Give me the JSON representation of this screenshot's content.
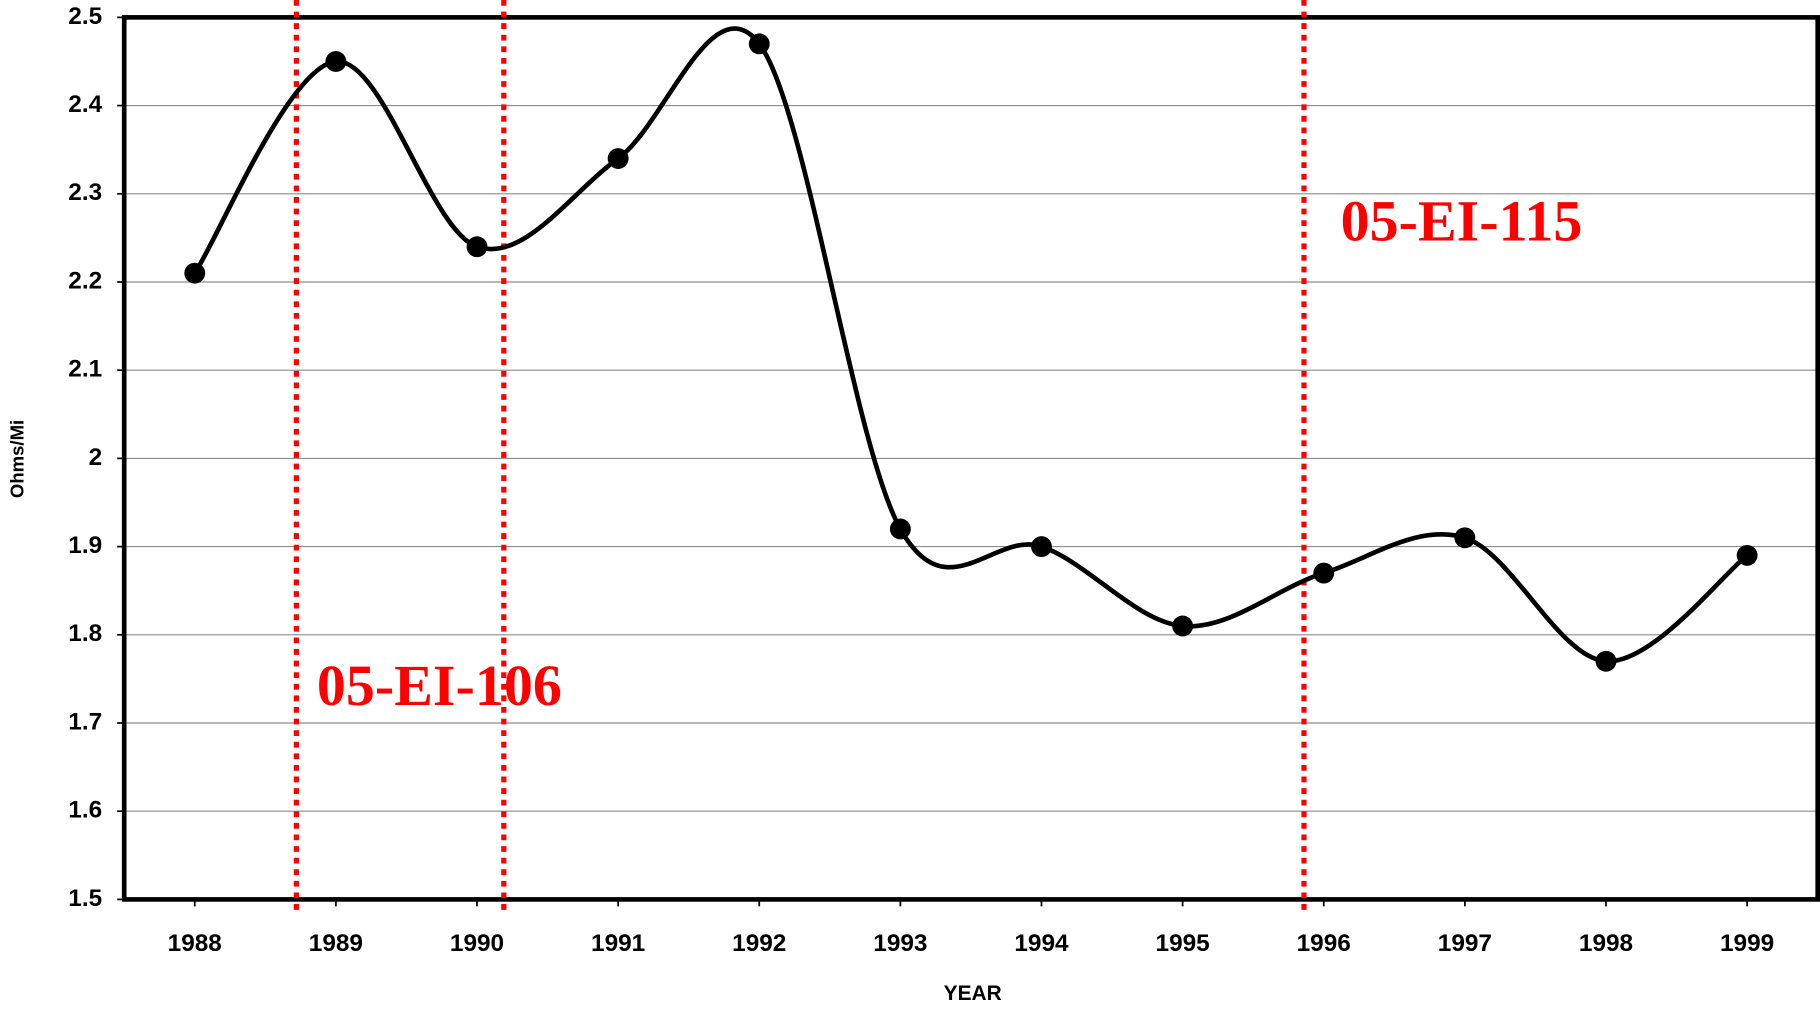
{
  "chart_data": {
    "type": "line",
    "y_label": "Ohms/Mi",
    "x_label": "YEAR",
    "x": [
      1988,
      1989,
      1990,
      1991,
      1992,
      1993,
      1994,
      1995,
      1996,
      1997,
      1998,
      1999
    ],
    "series": [
      {
        "color": "#000000",
        "values": [
          2.21,
          2.45,
          2.24,
          2.34,
          2.47,
          1.92,
          1.9,
          1.81,
          1.87,
          1.91,
          1.77,
          1.89
        ]
      }
    ],
    "xlim": [
      1987.5,
      1999.5
    ],
    "xticks": [
      1988,
      1989,
      1990,
      1991,
      1992,
      1993,
      1994,
      1995,
      1996,
      1997,
      1998,
      1999
    ],
    "ylim": [
      1.5,
      2.5
    ],
    "yticks": [
      1.5,
      1.6,
      1.7,
      1.8,
      1.9,
      2,
      2.1,
      2.2,
      2.3,
      2.4,
      2.5
    ],
    "grid": true,
    "vlines": {
      "color": "#ff0000",
      "x": [
        1988.72,
        1990.19,
        1995.86
      ]
    },
    "annotations": [
      {
        "text": "05-EI-106",
        "color": "#ff0000"
      },
      {
        "text": "05-EI-115",
        "color": "#ff0000"
      }
    ]
  }
}
